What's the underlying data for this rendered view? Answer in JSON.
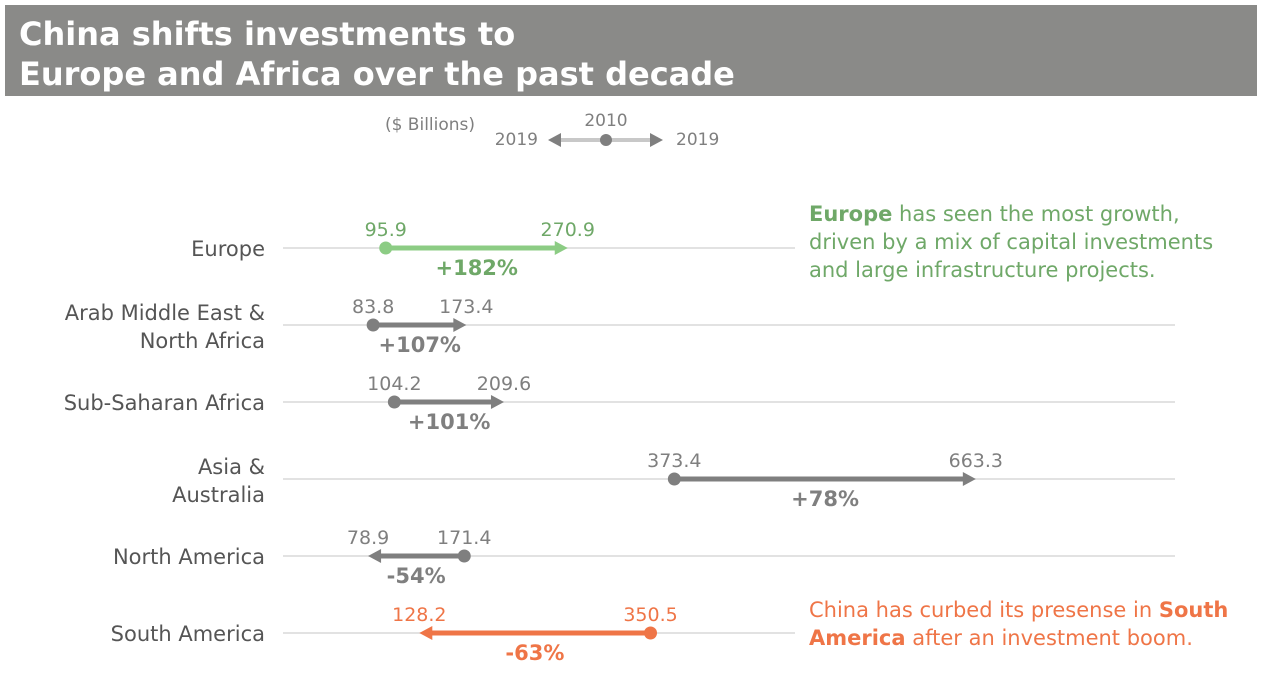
{
  "title": "China shifts investments to\nEurope and Africa over the past decade",
  "legend": {
    "units": "($ Billions)",
    "start_label": "2010",
    "end_label_left": "2019",
    "end_label_right": "2019"
  },
  "colors": {
    "title_bar": "#8a8a88",
    "default": "#7f7f7f",
    "highlight_up": "#8ccc84",
    "highlight_up_text": "#6fa868",
    "highlight_down": "#ef7547",
    "gridline": "#d9d9d9"
  },
  "annotations": {
    "europe_bold": "Europe",
    "europe_rest": " has seen the most growth,\ndriven by a mix of capital investments\nand large infrastructure projects.",
    "sa_pre": "China has curbed its presense in ",
    "sa_bold": "South\nAmerica",
    "sa_post": " after an investment boom."
  },
  "chart_data": {
    "type": "arrow-dot",
    "title": "China shifts investments to Europe and Africa over the past decade",
    "units": "($ Billions)",
    "start_year": "2010",
    "end_year": "2019",
    "rows": [
      {
        "region": "Europe",
        "start": 95.9,
        "end": 270.9,
        "change": "+182%",
        "style": "highlight_up"
      },
      {
        "region": "Arab Middle East &\nNorth Africa",
        "start": 83.8,
        "end": 173.4,
        "change": "+107%",
        "style": "default"
      },
      {
        "region": "Sub-Saharan Africa",
        "start": 104.2,
        "end": 209.6,
        "change": "+101%",
        "style": "default"
      },
      {
        "region": "Asia &\nAustralia",
        "start": 373.4,
        "end": 663.3,
        "change": "+78%",
        "style": "default"
      },
      {
        "region": "North America",
        "start": 171.4,
        "end": 78.9,
        "change": "-54%",
        "style": "default"
      },
      {
        "region": "South America",
        "start": 350.5,
        "end": 128.2,
        "change": "-63%",
        "style": "highlight_down"
      }
    ]
  }
}
